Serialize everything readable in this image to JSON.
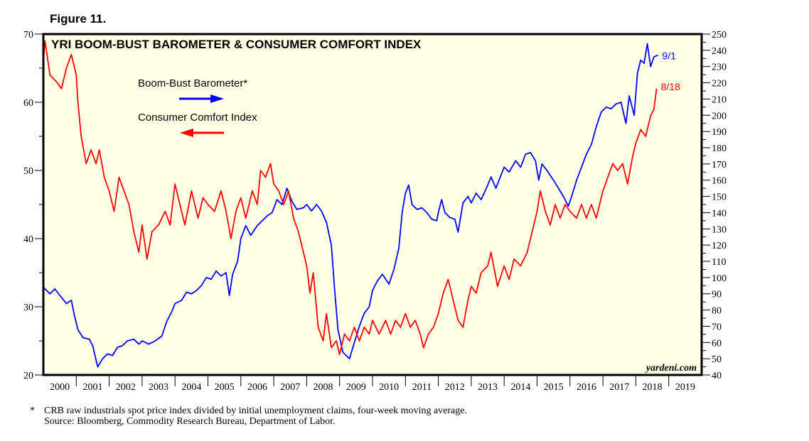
{
  "figure_label": "Figure 11.",
  "footnote": "CRB raw industrials spot price index divided by initial unemployment claims, four-week moving average.",
  "footnote_marker": "*",
  "source": "Source: Bloomberg, Commodity Research Bureau, Department of Labor.",
  "chart_data": {
    "type": "line",
    "title": "YRI BOOM-BUST BAROMETER & CONSUMER COMFORT INDEX",
    "watermark": "yardeni.com",
    "x_ticks": [
      "2000",
      "2001",
      "2002",
      "2003",
      "2004",
      "2005",
      "2006",
      "2007",
      "2008",
      "2009",
      "2010",
      "2011",
      "2012",
      "2013",
      "2014",
      "2015",
      "2016",
      "2017",
      "2018",
      "2019"
    ],
    "xlim": [
      2000,
      2020
    ],
    "y_left": {
      "range": [
        20,
        70
      ],
      "ticks": [
        "20",
        "30",
        "40",
        "50",
        "60",
        "70"
      ]
    },
    "y_right": {
      "range": [
        40,
        250
      ],
      "ticks": [
        "40",
        "50",
        "60",
        "70",
        "80",
        "90",
        "100",
        "110",
        "120",
        "130",
        "140",
        "150",
        "160",
        "170",
        "180",
        "190",
        "200",
        "210",
        "220",
        "230",
        "240",
        "250"
      ]
    },
    "grid": false,
    "legend_placement": "top-left",
    "series": [
      {
        "name": "Boom-Bust Barometer*",
        "axis": "right",
        "color": "#0000ff",
        "end_label": "9/1",
        "points": [
          [
            2000.0,
            94
          ],
          [
            2000.2,
            90
          ],
          [
            2000.35,
            93
          ],
          [
            2000.5,
            89
          ],
          [
            2000.7,
            84
          ],
          [
            2000.85,
            86
          ],
          [
            2000.95,
            76
          ],
          [
            2001.05,
            68
          ],
          [
            2001.2,
            63
          ],
          [
            2001.4,
            62
          ],
          [
            2001.5,
            58
          ],
          [
            2001.65,
            45
          ],
          [
            2001.8,
            50
          ],
          [
            2001.95,
            53
          ],
          [
            2002.1,
            52
          ],
          [
            2002.25,
            57
          ],
          [
            2002.4,
            58
          ],
          [
            2002.55,
            61
          ],
          [
            2002.75,
            62
          ],
          [
            2002.9,
            59
          ],
          [
            2003.0,
            61
          ],
          [
            2003.2,
            59
          ],
          [
            2003.4,
            61
          ],
          [
            2003.6,
            64
          ],
          [
            2003.75,
            73
          ],
          [
            2003.9,
            79
          ],
          [
            2004.0,
            84
          ],
          [
            2004.2,
            86
          ],
          [
            2004.35,
            91
          ],
          [
            2004.5,
            90
          ],
          [
            2004.65,
            92
          ],
          [
            2004.8,
            95
          ],
          [
            2004.95,
            100
          ],
          [
            2005.1,
            99
          ],
          [
            2005.25,
            104
          ],
          [
            2005.4,
            101
          ],
          [
            2005.55,
            103
          ],
          [
            2005.65,
            89
          ],
          [
            2005.75,
            102
          ],
          [
            2005.9,
            110
          ],
          [
            2006.0,
            124
          ],
          [
            2006.15,
            132
          ],
          [
            2006.3,
            126
          ],
          [
            2006.5,
            132
          ],
          [
            2006.65,
            135
          ],
          [
            2006.8,
            138
          ],
          [
            2006.95,
            140
          ],
          [
            2007.1,
            148
          ],
          [
            2007.25,
            145
          ],
          [
            2007.4,
            155
          ],
          [
            2007.55,
            147
          ],
          [
            2007.7,
            142
          ],
          [
            2007.9,
            143
          ],
          [
            2008.0,
            145
          ],
          [
            2008.15,
            141
          ],
          [
            2008.3,
            145
          ],
          [
            2008.45,
            141
          ],
          [
            2008.6,
            134
          ],
          [
            2008.75,
            120
          ],
          [
            2008.85,
            92
          ],
          [
            2008.95,
            68
          ],
          [
            2009.1,
            54
          ],
          [
            2009.2,
            52
          ],
          [
            2009.3,
            50
          ],
          [
            2009.45,
            60
          ],
          [
            2009.6,
            70
          ],
          [
            2009.75,
            78
          ],
          [
            2009.9,
            82
          ],
          [
            2010.0,
            92
          ],
          [
            2010.15,
            98
          ],
          [
            2010.3,
            102
          ],
          [
            2010.5,
            96
          ],
          [
            2010.65,
            105
          ],
          [
            2010.8,
            118
          ],
          [
            2010.9,
            140
          ],
          [
            2011.0,
            152
          ],
          [
            2011.1,
            157
          ],
          [
            2011.2,
            145
          ],
          [
            2011.35,
            142
          ],
          [
            2011.5,
            143
          ],
          [
            2011.65,
            140
          ],
          [
            2011.8,
            136
          ],
          [
            2011.95,
            135
          ],
          [
            2012.0,
            140
          ],
          [
            2012.1,
            148
          ],
          [
            2012.2,
            140
          ],
          [
            2012.35,
            137
          ],
          [
            2012.5,
            136
          ],
          [
            2012.6,
            128
          ],
          [
            2012.75,
            146
          ],
          [
            2012.9,
            150
          ],
          [
            2013.0,
            146
          ],
          [
            2013.15,
            152
          ],
          [
            2013.3,
            148
          ],
          [
            2013.5,
            157
          ],
          [
            2013.6,
            162
          ],
          [
            2013.75,
            155
          ],
          [
            2013.9,
            163
          ],
          [
            2014.0,
            168
          ],
          [
            2014.15,
            165
          ],
          [
            2014.35,
            172
          ],
          [
            2014.5,
            168
          ],
          [
            2014.65,
            176
          ],
          [
            2014.8,
            177
          ],
          [
            2014.95,
            172
          ],
          [
            2015.05,
            160
          ],
          [
            2015.15,
            170
          ],
          [
            2015.3,
            166
          ],
          [
            2015.5,
            160
          ],
          [
            2015.65,
            155
          ],
          [
            2015.8,
            150
          ],
          [
            2015.95,
            144
          ],
          [
            2016.05,
            150
          ],
          [
            2016.2,
            160
          ],
          [
            2016.35,
            168
          ],
          [
            2016.5,
            176
          ],
          [
            2016.65,
            182
          ],
          [
            2016.8,
            193
          ],
          [
            2016.95,
            202
          ],
          [
            2017.1,
            205
          ],
          [
            2017.25,
            204
          ],
          [
            2017.4,
            207
          ],
          [
            2017.55,
            208
          ],
          [
            2017.7,
            195
          ],
          [
            2017.8,
            212
          ],
          [
            2017.95,
            200
          ],
          [
            2018.05,
            226
          ],
          [
            2018.15,
            234
          ],
          [
            2018.25,
            232
          ],
          [
            2018.35,
            244
          ],
          [
            2018.45,
            230
          ],
          [
            2018.55,
            236
          ],
          [
            2018.67,
            237
          ]
        ]
      },
      {
        "name": "Consumer Comfort Index",
        "axis": "left",
        "color": "#ff0000",
        "end_label": "8/18",
        "points": [
          [
            2000.0,
            66
          ],
          [
            2000.05,
            69
          ],
          [
            2000.2,
            64
          ],
          [
            2000.4,
            63
          ],
          [
            2000.55,
            62
          ],
          [
            2000.7,
            65
          ],
          [
            2000.85,
            67
          ],
          [
            2001.0,
            64
          ],
          [
            2001.05,
            60
          ],
          [
            2001.15,
            55
          ],
          [
            2001.3,
            51
          ],
          [
            2001.45,
            53
          ],
          [
            2001.6,
            51
          ],
          [
            2001.7,
            53
          ],
          [
            2001.85,
            49
          ],
          [
            2002.0,
            47
          ],
          [
            2002.15,
            44
          ],
          [
            2002.3,
            49
          ],
          [
            2002.45,
            47
          ],
          [
            2002.6,
            45
          ],
          [
            2002.75,
            41
          ],
          [
            2002.9,
            38
          ],
          [
            2003.0,
            42
          ],
          [
            2003.15,
            37
          ],
          [
            2003.3,
            41
          ],
          [
            2003.5,
            42
          ],
          [
            2003.7,
            44
          ],
          [
            2003.85,
            42
          ],
          [
            2004.0,
            48
          ],
          [
            2004.15,
            45
          ],
          [
            2004.3,
            42
          ],
          [
            2004.5,
            47
          ],
          [
            2004.7,
            43
          ],
          [
            2004.85,
            46
          ],
          [
            2005.0,
            45
          ],
          [
            2005.2,
            44
          ],
          [
            2005.4,
            47
          ],
          [
            2005.55,
            44
          ],
          [
            2005.7,
            40
          ],
          [
            2005.85,
            44
          ],
          [
            2006.0,
            46
          ],
          [
            2006.15,
            43
          ],
          [
            2006.35,
            47
          ],
          [
            2006.5,
            45
          ],
          [
            2006.6,
            50
          ],
          [
            2006.75,
            49
          ],
          [
            2006.9,
            51
          ],
          [
            2007.0,
            48
          ],
          [
            2007.15,
            47
          ],
          [
            2007.3,
            45
          ],
          [
            2007.45,
            47
          ],
          [
            2007.6,
            43
          ],
          [
            2007.75,
            41
          ],
          [
            2007.9,
            38
          ],
          [
            2008.0,
            36
          ],
          [
            2008.1,
            32
          ],
          [
            2008.2,
            35
          ],
          [
            2008.35,
            27
          ],
          [
            2008.5,
            25
          ],
          [
            2008.6,
            29
          ],
          [
            2008.75,
            24
          ],
          [
            2008.9,
            25
          ],
          [
            2009.0,
            23
          ],
          [
            2009.15,
            26
          ],
          [
            2009.3,
            25
          ],
          [
            2009.45,
            27
          ],
          [
            2009.6,
            25
          ],
          [
            2009.75,
            27
          ],
          [
            2009.9,
            26
          ],
          [
            2010.0,
            28
          ],
          [
            2010.2,
            26
          ],
          [
            2010.4,
            28
          ],
          [
            2010.55,
            26
          ],
          [
            2010.7,
            28
          ],
          [
            2010.85,
            27
          ],
          [
            2011.0,
            29
          ],
          [
            2011.15,
            27
          ],
          [
            2011.3,
            28
          ],
          [
            2011.45,
            26
          ],
          [
            2011.55,
            24
          ],
          [
            2011.7,
            26
          ],
          [
            2011.85,
            27
          ],
          [
            2012.0,
            29
          ],
          [
            2012.15,
            32
          ],
          [
            2012.3,
            34
          ],
          [
            2012.45,
            31
          ],
          [
            2012.6,
            28
          ],
          [
            2012.75,
            27
          ],
          [
            2012.9,
            31
          ],
          [
            2013.0,
            33
          ],
          [
            2013.15,
            32
          ],
          [
            2013.3,
            35
          ],
          [
            2013.5,
            36
          ],
          [
            2013.6,
            38
          ],
          [
            2013.8,
            33
          ],
          [
            2014.0,
            36
          ],
          [
            2014.15,
            34
          ],
          [
            2014.3,
            37
          ],
          [
            2014.5,
            36
          ],
          [
            2014.7,
            38
          ],
          [
            2014.85,
            41
          ],
          [
            2015.0,
            44
          ],
          [
            2015.1,
            47
          ],
          [
            2015.25,
            44
          ],
          [
            2015.4,
            42
          ],
          [
            2015.55,
            45
          ],
          [
            2015.7,
            43
          ],
          [
            2015.85,
            45
          ],
          [
            2016.0,
            44
          ],
          [
            2016.2,
            43
          ],
          [
            2016.35,
            45
          ],
          [
            2016.5,
            43
          ],
          [
            2016.65,
            45
          ],
          [
            2016.8,
            43
          ],
          [
            2017.0,
            47
          ],
          [
            2017.15,
            49
          ],
          [
            2017.3,
            51
          ],
          [
            2017.45,
            50
          ],
          [
            2017.6,
            51
          ],
          [
            2017.75,
            48
          ],
          [
            2017.9,
            52
          ],
          [
            2018.0,
            54
          ],
          [
            2018.15,
            56
          ],
          [
            2018.3,
            55
          ],
          [
            2018.45,
            58
          ],
          [
            2018.55,
            59
          ],
          [
            2018.63,
            62
          ]
        ]
      }
    ]
  }
}
